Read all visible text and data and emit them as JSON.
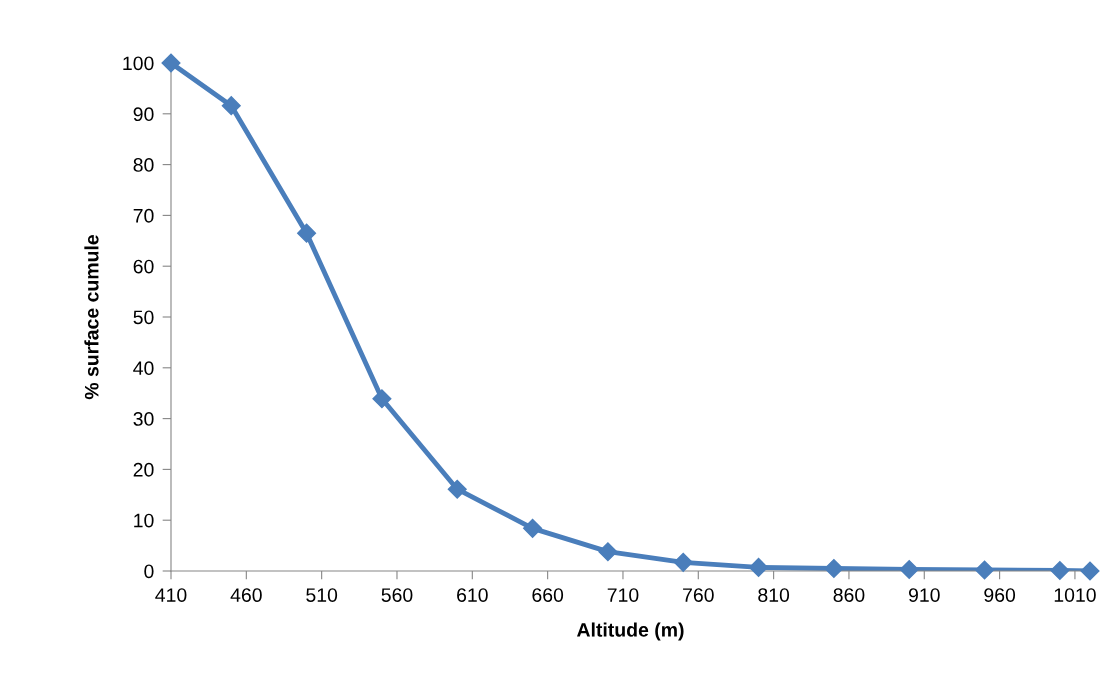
{
  "chart_data": {
    "type": "line",
    "xlabel": "Altitude (m)",
    "ylabel": "% surface cumule",
    "x": [
      410,
      450,
      500,
      550,
      600,
      650,
      700,
      750,
      800,
      850,
      900,
      950,
      1000,
      1020
    ],
    "series": [
      {
        "color": "#4a7ebb",
        "values": [
          100,
          91.6,
          66.5,
          33.9,
          16.1,
          8.4,
          3.8,
          1.7,
          0.7,
          0.5,
          0.3,
          0.2,
          0.1,
          0
        ]
      }
    ],
    "xlim": [
      410,
      1020
    ],
    "xticks": [
      410,
      460,
      510,
      560,
      610,
      660,
      710,
      760,
      810,
      860,
      910,
      960,
      1010
    ],
    "ylim": [
      0,
      100
    ],
    "yticks": [
      0,
      10,
      20,
      30,
      40,
      50,
      60,
      70,
      80,
      90,
      100
    ],
    "grid": false,
    "legend": false,
    "marker": "diamond",
    "line_style": "solid"
  }
}
